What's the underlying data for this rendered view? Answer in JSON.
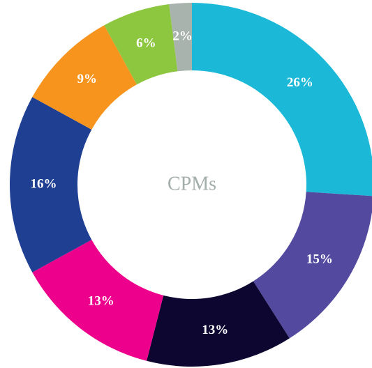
{
  "chart_data": {
    "type": "donut",
    "center_label": "CPMs",
    "values": [
      26,
      15,
      13,
      13,
      16,
      9,
      6,
      2
    ],
    "value_labels": [
      "26%",
      "15%",
      "13%",
      "13%",
      "16%",
      "9%",
      "6%",
      "2%"
    ],
    "colors": [
      "#1bb9d7",
      "#534a9f",
      "#0d0631",
      "#ec008c",
      "#1f3f93",
      "#f7941d",
      "#8dc63f",
      "#a8b3ae"
    ]
  }
}
